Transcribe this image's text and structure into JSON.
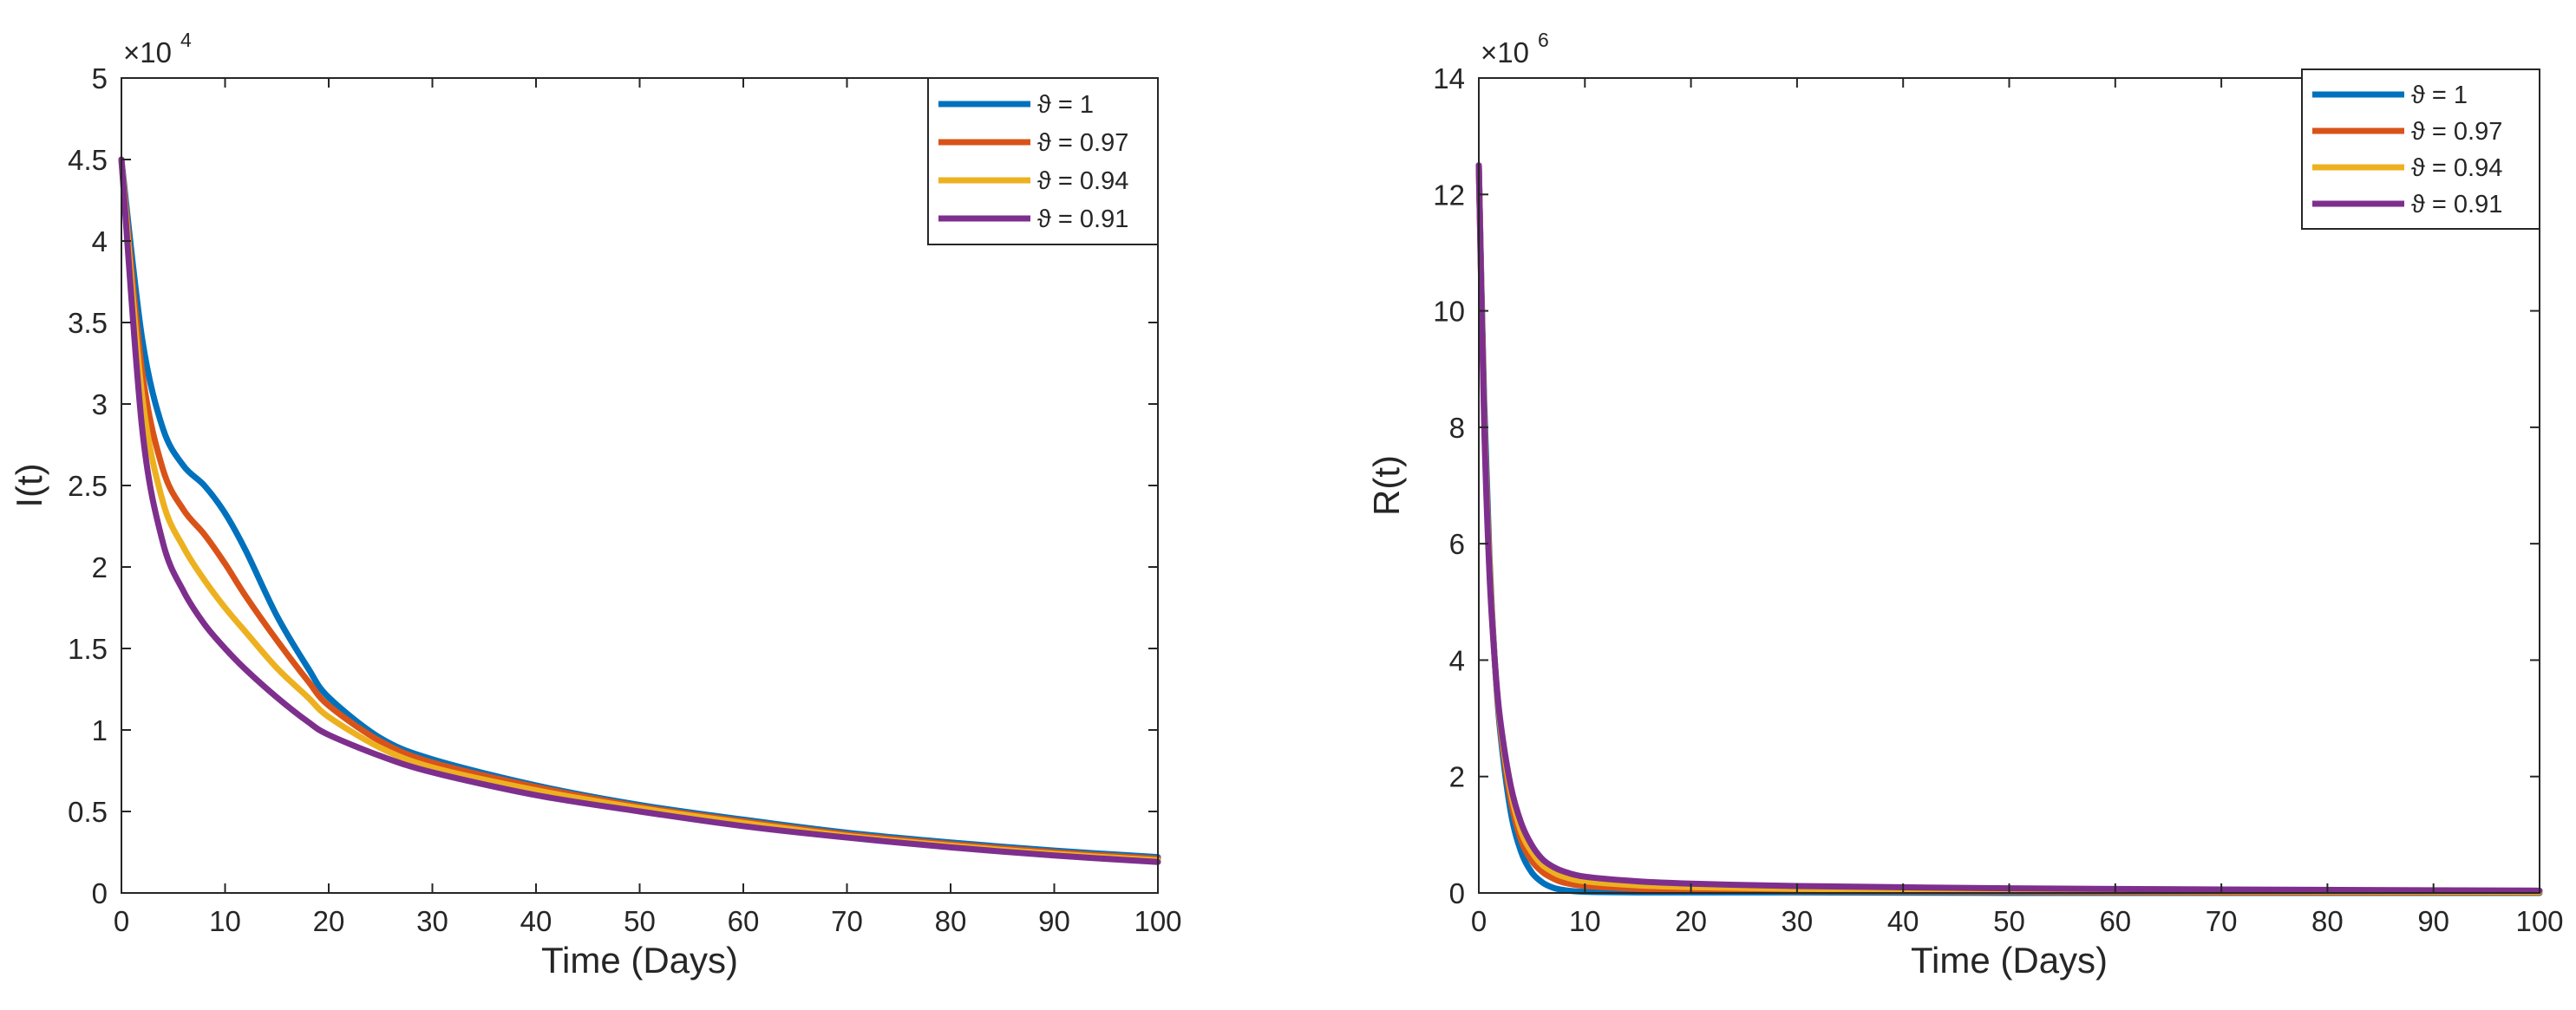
{
  "chart_data": [
    {
      "type": "line",
      "xlabel": "Time (Days)",
      "ylabel": "I(t)",
      "xlim": [
        0,
        100
      ],
      "ylim": [
        0,
        5
      ],
      "xticks": [
        "0",
        "10",
        "20",
        "30",
        "40",
        "50",
        "60",
        "70",
        "80",
        "90",
        "100"
      ],
      "yticks": [
        "0",
        "0.5",
        "1",
        "1.5",
        "2",
        "2.5",
        "3",
        "3.5",
        "4",
        "4.5",
        "5"
      ],
      "y_multiplier": {
        "base": "×10",
        "exponent": "4"
      },
      "legend_position": "top-right",
      "series": [
        {
          "name": "ϑ = 1",
          "color": "#0072BD",
          "x": [
            0,
            2,
            4,
            6,
            8,
            10,
            12,
            15,
            18,
            20,
            25,
            30,
            40,
            50,
            60,
            70,
            80,
            90,
            100
          ],
          "y": [
            4.5,
            3.4,
            2.85,
            2.62,
            2.5,
            2.33,
            2.1,
            1.7,
            1.38,
            1.2,
            0.95,
            0.82,
            0.66,
            0.54,
            0.45,
            0.37,
            0.31,
            0.26,
            0.22
          ]
        },
        {
          "name": "ϑ = 0.97",
          "color": "#D95319",
          "x": [
            0,
            2,
            4,
            6,
            8,
            10,
            12,
            15,
            18,
            20,
            25,
            30,
            40,
            50,
            60,
            70,
            80,
            90,
            100
          ],
          "y": [
            4.5,
            3.2,
            2.6,
            2.35,
            2.2,
            2.02,
            1.82,
            1.55,
            1.3,
            1.15,
            0.93,
            0.8,
            0.65,
            0.53,
            0.44,
            0.36,
            0.3,
            0.25,
            0.21
          ]
        },
        {
          "name": "ϑ = 0.94",
          "color": "#EDB120",
          "x": [
            0,
            2,
            4,
            6,
            8,
            10,
            12,
            15,
            18,
            20,
            25,
            30,
            40,
            50,
            60,
            70,
            80,
            90,
            100
          ],
          "y": [
            4.5,
            3.05,
            2.4,
            2.12,
            1.92,
            1.75,
            1.6,
            1.38,
            1.2,
            1.08,
            0.89,
            0.77,
            0.63,
            0.52,
            0.43,
            0.35,
            0.29,
            0.24,
            0.2
          ]
        },
        {
          "name": "ϑ = 0.91",
          "color": "#7E2F8E",
          "x": [
            0,
            2,
            4,
            6,
            8,
            10,
            12,
            15,
            18,
            20,
            25,
            30,
            40,
            50,
            60,
            70,
            80,
            90,
            100
          ],
          "y": [
            4.5,
            2.85,
            2.15,
            1.85,
            1.65,
            1.5,
            1.37,
            1.2,
            1.05,
            0.97,
            0.84,
            0.74,
            0.6,
            0.5,
            0.41,
            0.34,
            0.28,
            0.23,
            0.19
          ]
        }
      ]
    },
    {
      "type": "line",
      "xlabel": "Time (Days)",
      "ylabel": "R(t)",
      "xlim": [
        0,
        100
      ],
      "ylim": [
        0,
        14
      ],
      "xticks": [
        "0",
        "10",
        "20",
        "30",
        "40",
        "50",
        "60",
        "70",
        "80",
        "90",
        "100"
      ],
      "yticks": [
        "0",
        "2",
        "4",
        "6",
        "8",
        "10",
        "12",
        "14"
      ],
      "y_multiplier": {
        "base": "×10",
        "exponent": "6"
      },
      "legend_position": "top-right",
      "series": [
        {
          "name": "ϑ = 1",
          "color": "#0072BD",
          "x": [
            0,
            0.5,
            1,
            1.5,
            2,
            3,
            4,
            5,
            6,
            7,
            8,
            10,
            15,
            20,
            30,
            50,
            70,
            100
          ],
          "y": [
            12.5,
            8.5,
            5.8,
            4.0,
            2.8,
            1.4,
            0.7,
            0.35,
            0.18,
            0.09,
            0.05,
            0.02,
            0.01,
            0.01,
            0.01,
            0.0,
            0.0,
            0.0
          ]
        },
        {
          "name": "ϑ = 0.97",
          "color": "#D95319",
          "x": [
            0,
            0.5,
            1,
            1.5,
            2,
            3,
            4,
            5,
            6,
            7,
            8,
            10,
            15,
            20,
            30,
            50,
            70,
            100
          ],
          "y": [
            12.5,
            8.3,
            5.7,
            4.0,
            2.9,
            1.6,
            0.9,
            0.55,
            0.36,
            0.25,
            0.18,
            0.12,
            0.07,
            0.05,
            0.03,
            0.02,
            0.01,
            0.01
          ]
        },
        {
          "name": "ϑ = 0.94",
          "color": "#EDB120",
          "x": [
            0,
            0.5,
            1,
            1.5,
            2,
            3,
            4,
            5,
            6,
            7,
            8,
            10,
            15,
            20,
            30,
            50,
            70,
            100
          ],
          "y": [
            12.5,
            8.2,
            5.6,
            4.0,
            2.95,
            1.75,
            1.05,
            0.7,
            0.48,
            0.36,
            0.28,
            0.2,
            0.13,
            0.1,
            0.07,
            0.04,
            0.03,
            0.02
          ]
        },
        {
          "name": "ϑ = 0.91",
          "color": "#7E2F8E",
          "x": [
            0,
            0.5,
            1,
            1.5,
            2,
            3,
            4,
            5,
            6,
            7,
            8,
            10,
            15,
            20,
            30,
            50,
            70,
            100
          ],
          "y": [
            12.5,
            8.1,
            5.5,
            4.0,
            3.0,
            1.85,
            1.2,
            0.82,
            0.58,
            0.45,
            0.37,
            0.28,
            0.2,
            0.16,
            0.12,
            0.08,
            0.06,
            0.04
          ]
        }
      ]
    }
  ]
}
